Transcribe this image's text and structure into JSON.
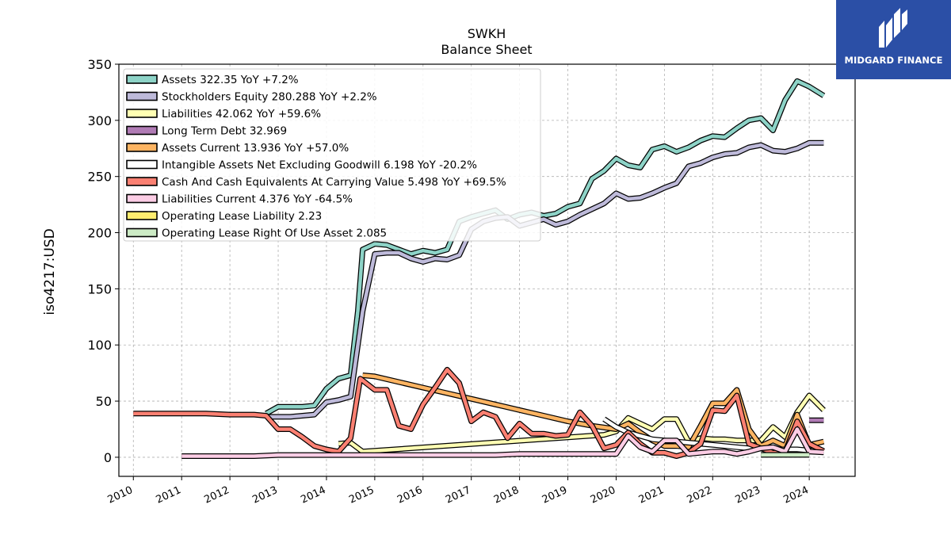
{
  "brand": {
    "name": "MIDGARD FINANCE",
    "bg_color": "#2b4fa6"
  },
  "chart_data": {
    "type": "line",
    "title": "SWKH",
    "subtitle": "Balance  Sheet",
    "ylabel": "iso4217:USD",
    "xlabel": "",
    "xlim": [
      2009.7,
      2024.95
    ],
    "ylim": [
      -17,
      350
    ],
    "x_ticks": [
      "2010",
      "2011",
      "2012",
      "2013",
      "2014",
      "2015",
      "2016",
      "2017",
      "2018",
      "2019",
      "2020",
      "2021",
      "2022",
      "2023",
      "2024"
    ],
    "y_ticks": [
      0,
      50,
      100,
      150,
      200,
      250,
      300,
      350
    ],
    "grid": true,
    "legend_position": "top-left",
    "series": [
      {
        "name": "Assets",
        "color": "#8dd3c7",
        "legend": "Assets  322.35 YoY +7.2%",
        "x": [
          2012.75,
          2013.0,
          2013.25,
          2013.5,
          2013.75,
          2014.0,
          2014.25,
          2014.5,
          2014.65,
          2014.75,
          2015.0,
          2015.25,
          2015.5,
          2015.75,
          2016.0,
          2016.25,
          2016.5,
          2016.75,
          2017.0,
          2017.25,
          2017.5,
          2017.75,
          2018.0,
          2018.25,
          2018.5,
          2018.75,
          2019.0,
          2019.25,
          2019.5,
          2019.75,
          2020.0,
          2020.25,
          2020.5,
          2020.75,
          2021.0,
          2021.25,
          2021.5,
          2021.75,
          2022.0,
          2022.25,
          2022.5,
          2022.75,
          2023.0,
          2023.25,
          2023.5,
          2023.75,
          2024.0,
          2024.3
        ],
        "y": [
          39,
          45,
          45,
          45,
          46,
          61,
          70,
          73,
          130,
          185,
          190,
          189,
          185,
          181,
          184,
          182,
          185,
          210,
          214,
          217,
          220,
          212,
          216,
          218,
          215,
          217,
          223,
          226,
          248,
          255,
          266,
          260,
          258,
          274,
          277,
          272,
          276,
          282,
          286,
          285,
          293,
          300,
          302,
          291,
          318,
          335,
          330,
          322
        ]
      },
      {
        "name": "Stockholders Equity",
        "color": "#bebada",
        "legend": "Stockholders Equity  280.288 YoY +2.2%",
        "x": [
          2012.75,
          2013.0,
          2013.25,
          2013.5,
          2013.75,
          2014.0,
          2014.25,
          2014.5,
          2014.75,
          2015.0,
          2015.25,
          2015.5,
          2015.75,
          2016.0,
          2016.25,
          2016.5,
          2016.75,
          2017.0,
          2017.25,
          2017.5,
          2017.75,
          2018.0,
          2018.25,
          2018.5,
          2018.75,
          2019.0,
          2019.25,
          2019.5,
          2019.75,
          2020.0,
          2020.25,
          2020.5,
          2020.75,
          2021.0,
          2021.25,
          2021.5,
          2021.75,
          2022.0,
          2022.25,
          2022.5,
          2022.75,
          2023.0,
          2023.25,
          2023.5,
          2023.75,
          2024.0,
          2024.3
        ],
        "y": [
          36,
          36,
          36,
          37,
          38,
          49,
          51,
          54,
          130,
          181,
          182,
          182,
          177,
          174,
          177,
          176,
          180,
          203,
          210,
          213,
          214,
          206,
          209,
          212,
          207,
          210,
          216,
          221,
          226,
          235,
          230,
          231,
          235,
          240,
          244,
          259,
          262,
          267,
          270,
          271,
          276,
          278,
          273,
          272,
          275,
          280,
          280
        ]
      },
      {
        "name": "Liabilities",
        "color": "#ffffb3",
        "legend": "Liabilities  42.062 YoY +59.6%",
        "x": [
          2014.25,
          2014.5,
          2014.75,
          2019.75,
          2020.0,
          2020.25,
          2020.5,
          2020.75,
          2021.0,
          2021.25,
          2021.5,
          2021.75,
          2022.0,
          2022.25,
          2022.5,
          2022.75,
          2023.0,
          2023.25,
          2023.5,
          2023.75,
          2024.0,
          2024.3
        ],
        "y": [
          12,
          13,
          5,
          20,
          23,
          35,
          30,
          25,
          34,
          34,
          14,
          17,
          16,
          16,
          15,
          15,
          15,
          27,
          18,
          40,
          55,
          42
        ]
      },
      {
        "name": "Long Term Debt",
        "color": "#b07bb5",
        "legend": "Long Term Debt  32.969",
        "x": [
          2024.0,
          2024.3
        ],
        "y": [
          33,
          33
        ]
      },
      {
        "name": "Assets Current",
        "color": "#fdb462",
        "legend": "Assets Current  13.936 YoY +57.0%",
        "x": [
          2014.75,
          2015.0,
          2015.5,
          2016.0,
          2016.5,
          2017.0,
          2017.5,
          2018.0,
          2018.5,
          2019.0,
          2019.5,
          2020.0,
          2020.25,
          2020.5,
          2020.75,
          2021.0,
          2021.25,
          2021.5,
          2021.75,
          2022.0,
          2022.25,
          2022.5,
          2022.75,
          2023.0,
          2023.25,
          2023.5,
          2023.75,
          2024.0,
          2024.3
        ],
        "y": [
          73,
          72,
          67,
          62,
          57,
          52,
          47,
          42,
          37,
          32,
          28,
          25,
          30,
          22,
          15,
          10,
          10,
          9,
          28,
          48,
          48,
          60,
          25,
          10,
          15,
          10,
          38,
          11,
          14
        ]
      },
      {
        "name": "Intangible Assets Net Excluding Goodwill",
        "color": "#ffffff",
        "legend": "Intangible Assets Net Excluding Goodwill  6.198 YoY -20.2%",
        "x": [
          2019.75,
          2020.0,
          2020.25,
          2020.5,
          2020.75,
          2021.0,
          2021.25,
          2021.5,
          2021.75,
          2022.0,
          2022.25,
          2022.5,
          2022.75,
          2023.0,
          2023.25,
          2023.5,
          2023.75,
          2024.0,
          2024.3
        ],
        "y": [
          34,
          27,
          22,
          19,
          16,
          15,
          14,
          13,
          12,
          11,
          10,
          9,
          8,
          8,
          7,
          7,
          7,
          6,
          6
        ]
      },
      {
        "name": "Cash And Cash Equivalents At Carrying Value",
        "color": "#fb8072",
        "legend": "Cash And Cash Equivalents At Carrying Value  5.498 YoY +69.5%",
        "x": [
          2010.0,
          2010.5,
          2011.0,
          2011.5,
          2012.0,
          2012.5,
          2012.75,
          2013.0,
          2013.25,
          2013.5,
          2013.75,
          2014.0,
          2014.25,
          2014.5,
          2014.7,
          2014.85,
          2015.0,
          2015.25,
          2015.5,
          2015.75,
          2016.0,
          2016.25,
          2016.5,
          2016.75,
          2017.0,
          2017.25,
          2017.5,
          2017.75,
          2018.0,
          2018.25,
          2018.5,
          2018.75,
          2019.0,
          2019.25,
          2019.5,
          2019.75,
          2020.0,
          2020.25,
          2020.5,
          2020.75,
          2021.0,
          2021.25,
          2021.5,
          2021.75,
          2022.0,
          2022.25,
          2022.5,
          2022.75,
          2023.0,
          2023.25,
          2023.5,
          2023.75,
          2024.0,
          2024.3
        ],
        "y": [
          39,
          39,
          39,
          39,
          38,
          38,
          37,
          25,
          25,
          18,
          10,
          7,
          5,
          17,
          70,
          65,
          60,
          60,
          28,
          25,
          47,
          62,
          78,
          66,
          32,
          40,
          36,
          17,
          30,
          21,
          21,
          19,
          20,
          40,
          28,
          8,
          11,
          22,
          12,
          4,
          4,
          1,
          4,
          12,
          42,
          41,
          55,
          12,
          8,
          4,
          5,
          32,
          12,
          5.5
        ]
      },
      {
        "name": "Liabilities Current",
        "color": "#fccde5",
        "legend": "Liabilities Current  4.376 YoY -64.5%",
        "x": [
          2011.0,
          2011.5,
          2012.0,
          2012.5,
          2013.0,
          2013.5,
          2014.0,
          2014.5,
          2015.0,
          2015.5,
          2016.0,
          2016.5,
          2017.0,
          2017.5,
          2018.0,
          2018.5,
          2019.0,
          2019.5,
          2020.0,
          2020.25,
          2020.5,
          2020.75,
          2021.0,
          2021.25,
          2021.5,
          2021.75,
          2022.0,
          2022.25,
          2022.5,
          2022.75,
          2023.0,
          2023.25,
          2023.5,
          2023.75,
          2024.0,
          2024.3
        ],
        "y": [
          1,
          1,
          1,
          1,
          2,
          2,
          2,
          2,
          2,
          2,
          2,
          2,
          2,
          2,
          3,
          3,
          3,
          3,
          3,
          19,
          9,
          5,
          15,
          15,
          3,
          4,
          5,
          5,
          3,
          5,
          8,
          9,
          5,
          25,
          5,
          4.4
        ]
      },
      {
        "name": "Operating Lease Liability",
        "color": "#ffed6f",
        "legend": "Operating Lease Liability  2.23",
        "x": [],
        "y": []
      },
      {
        "name": "Operating Lease Right Of Use Asset",
        "color": "#ccebc5",
        "legend": "Operating Lease Right Of Use Asset  2.085",
        "x": [
          2023.0,
          2024.0
        ],
        "y": [
          2.1,
          2.1
        ]
      }
    ]
  }
}
